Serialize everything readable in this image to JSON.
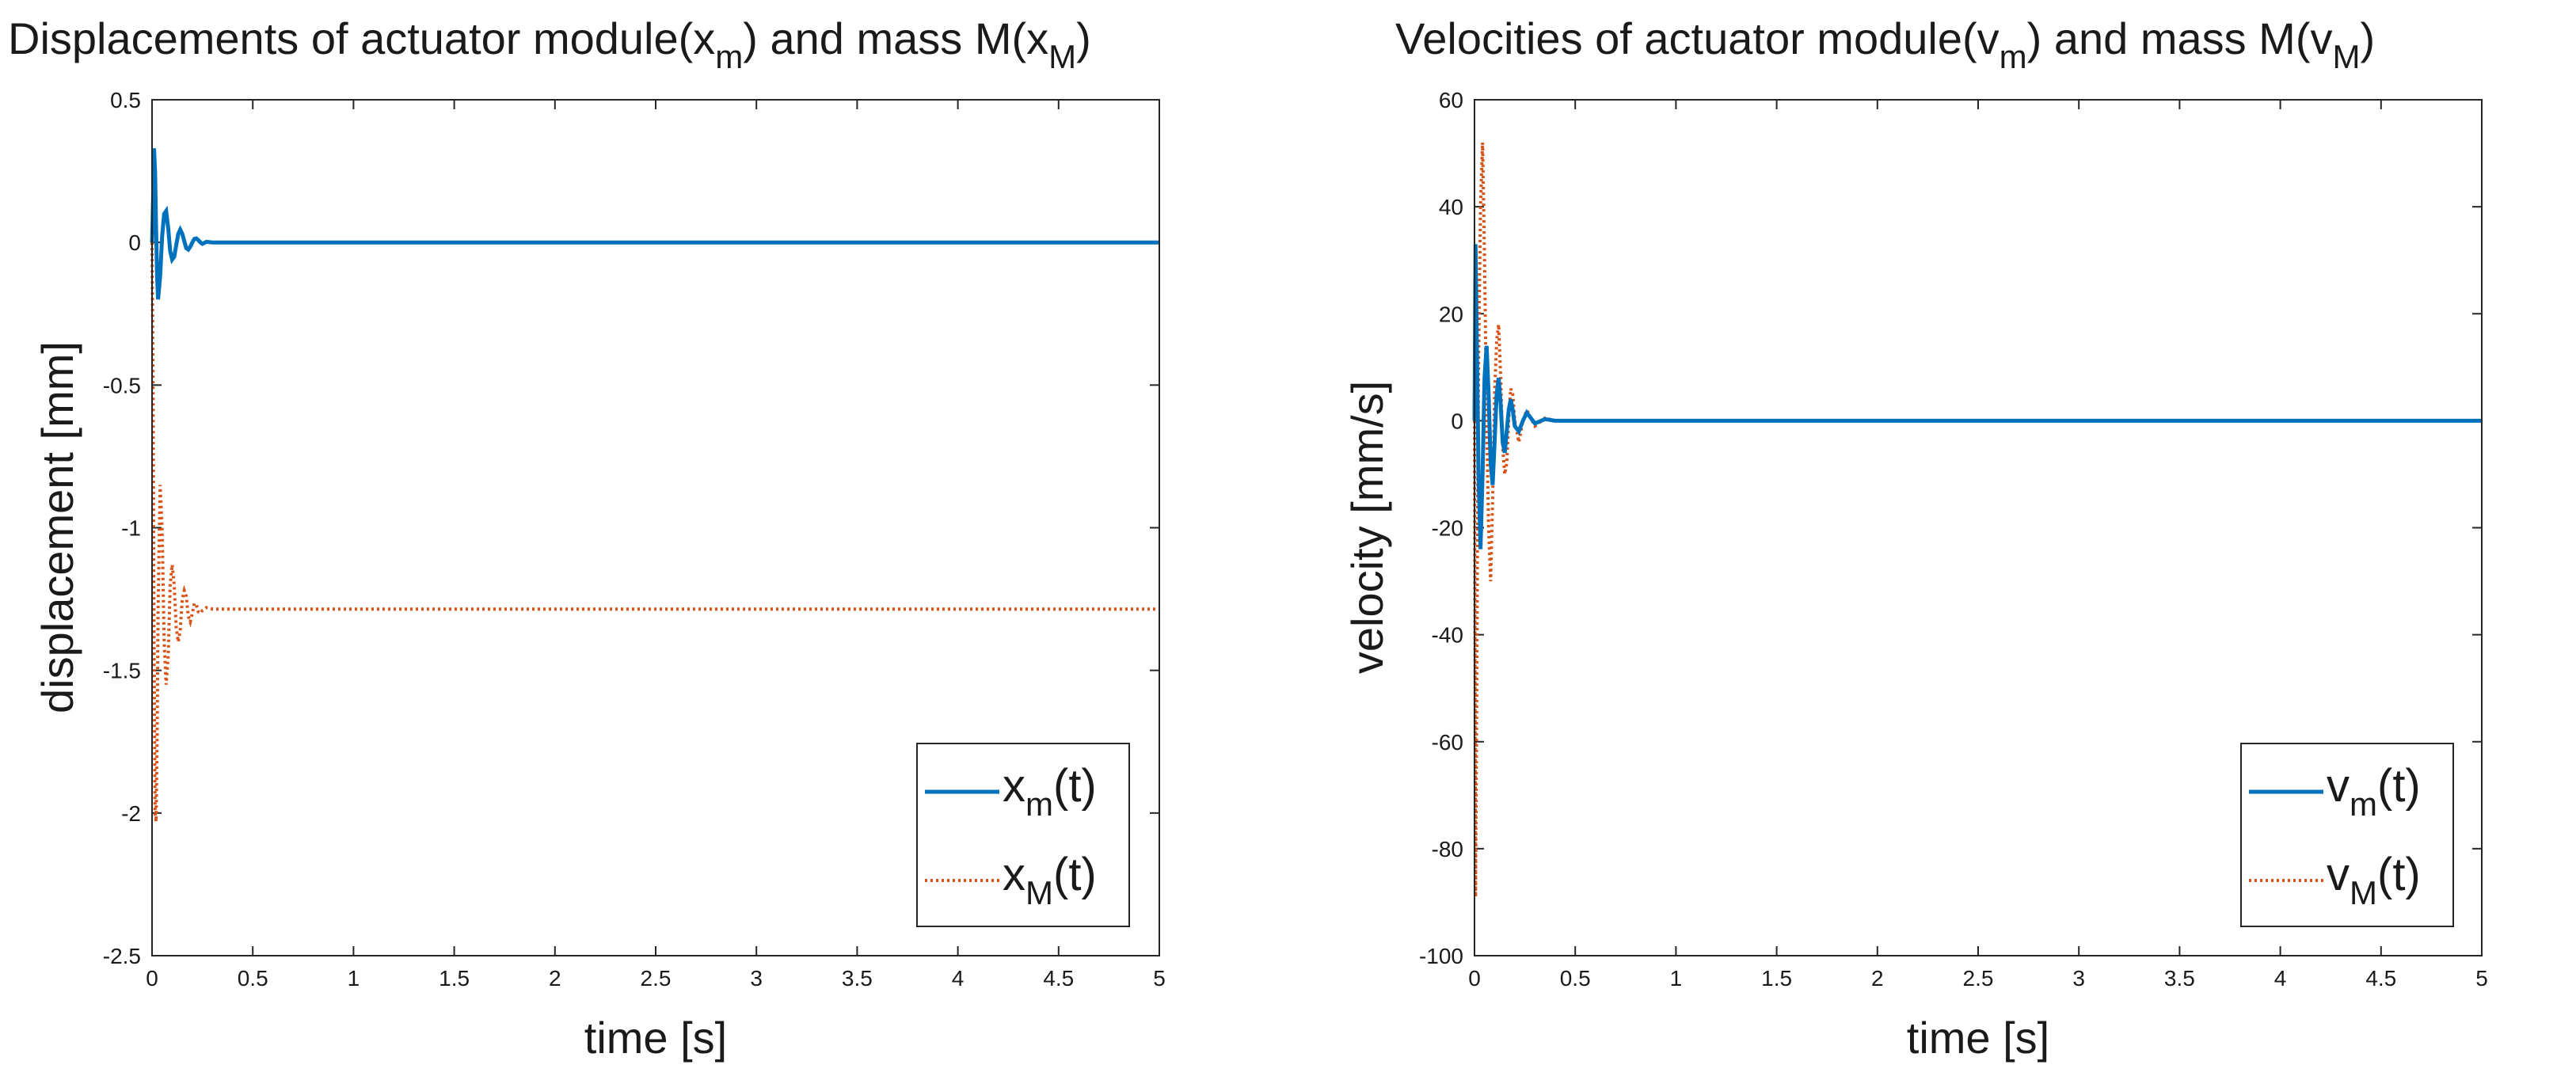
{
  "colors": {
    "module": "#0072BD",
    "mass": "#D95319",
    "axis": "#262626",
    "background": "#ffffff"
  },
  "chart_data": [
    {
      "type": "line",
      "title": {
        "prefix": "Displacements of actuator module(x",
        "sub1": "m",
        "middle": ") and mass M(x",
        "sub2": "M",
        "suffix": ")"
      },
      "xlabel": "time [s]",
      "ylabel": "displacement [mm]",
      "xlim": [
        0,
        5
      ],
      "ylim": [
        -2.5,
        0.5
      ],
      "xticks": [
        0,
        0.5,
        1,
        1.5,
        2,
        2.5,
        3,
        3.5,
        4,
        4.5,
        5
      ],
      "xtick_labels": [
        "0",
        "0.5",
        "1",
        "1.5",
        "2",
        "2.5",
        "3",
        "3.5",
        "4",
        "4.5",
        "5"
      ],
      "yticks": [
        0.5,
        0,
        -0.5,
        -1,
        -1.5,
        -2,
        -2.5
      ],
      "ytick_labels": [
        "0.5",
        "0",
        "-0.5",
        "-1",
        "-1.5",
        "-2",
        "-2.5"
      ],
      "grid": false,
      "legend": {
        "placement": "bottom-right",
        "entries": [
          {
            "base": "x",
            "sub": "m",
            "tail": "(t)"
          },
          {
            "base": "x",
            "sub": "M",
            "tail": "(t)"
          }
        ]
      },
      "series": [
        {
          "name": "x_m(t)",
          "style": "solid",
          "x": [
            0,
            0.005,
            0.01,
            0.015,
            0.02,
            0.025,
            0.03,
            0.04,
            0.05,
            0.06,
            0.07,
            0.08,
            0.09,
            0.1,
            0.11,
            0.12,
            0.13,
            0.14,
            0.15,
            0.16,
            0.17,
            0.18,
            0.19,
            0.2,
            0.21,
            0.22,
            0.23,
            0.24,
            0.25,
            0.27,
            0.3,
            0.35,
            0.5,
            1,
            2,
            3,
            4,
            5
          ],
          "y": [
            0,
            0.15,
            0.33,
            0.25,
            0.05,
            -0.12,
            -0.2,
            -0.12,
            0.02,
            0.1,
            0.11,
            0.05,
            -0.03,
            -0.06,
            -0.05,
            -0.01,
            0.03,
            0.045,
            0.03,
            0.005,
            -0.02,
            -0.025,
            -0.015,
            0.0,
            0.012,
            0.014,
            0.008,
            0.0,
            -0.005,
            0.002,
            0.0,
            0.0,
            0.0,
            0.0,
            0.0,
            0.0,
            0.0,
            0.0
          ]
        },
        {
          "name": "x_M(t)",
          "style": "dotted",
          "x": [
            0,
            0.005,
            0.01,
            0.015,
            0.02,
            0.025,
            0.03,
            0.04,
            0.05,
            0.06,
            0.07,
            0.08,
            0.09,
            0.1,
            0.11,
            0.12,
            0.13,
            0.14,
            0.15,
            0.16,
            0.17,
            0.18,
            0.19,
            0.2,
            0.21,
            0.22,
            0.23,
            0.24,
            0.25,
            0.27,
            0.3,
            0.35,
            0.5,
            1,
            2,
            3,
            4,
            5
          ],
          "y": [
            0,
            -0.5,
            -1.4,
            -2.0,
            -2.03,
            -1.75,
            -1.3,
            -0.85,
            -1.0,
            -1.4,
            -1.55,
            -1.45,
            -1.2,
            -1.13,
            -1.2,
            -1.35,
            -1.4,
            -1.36,
            -1.25,
            -1.22,
            -1.24,
            -1.31,
            -1.33,
            -1.3,
            -1.265,
            -1.27,
            -1.295,
            -1.3,
            -1.29,
            -1.28,
            -1.285,
            -1.285,
            -1.285,
            -1.285,
            -1.285,
            -1.285,
            -1.285,
            -1.285
          ]
        }
      ]
    },
    {
      "type": "line",
      "title": {
        "prefix": "Velocities of actuator module(v",
        "sub1": "m",
        "middle": ") and mass M(v",
        "sub2": "M",
        "suffix": ")"
      },
      "xlabel": "time [s]",
      "ylabel": "velocity [mm/s]",
      "xlim": [
        0,
        5
      ],
      "ylim": [
        -100,
        60
      ],
      "xticks": [
        0,
        0.5,
        1,
        1.5,
        2,
        2.5,
        3,
        3.5,
        4,
        4.5,
        5
      ],
      "xtick_labels": [
        "0",
        "0.5",
        "1",
        "1.5",
        "2",
        "2.5",
        "3",
        "3.5",
        "4",
        "4.5",
        "5"
      ],
      "yticks": [
        60,
        40,
        20,
        0,
        -20,
        -40,
        -60,
        -80,
        -100
      ],
      "ytick_labels": [
        "60",
        "40",
        "20",
        "0",
        "-20",
        "-40",
        "-60",
        "-80",
        "-100"
      ],
      "grid": false,
      "legend": {
        "placement": "bottom-right",
        "entries": [
          {
            "base": "v",
            "sub": "m",
            "tail": "(t)"
          },
          {
            "base": "v",
            "sub": "M",
            "tail": "(t)"
          }
        ]
      },
      "series": [
        {
          "name": "v_m(t)",
          "style": "solid",
          "x": [
            0,
            0.005,
            0.01,
            0.015,
            0.02,
            0.03,
            0.04,
            0.05,
            0.06,
            0.07,
            0.08,
            0.09,
            0.1,
            0.11,
            0.12,
            0.13,
            0.14,
            0.15,
            0.16,
            0.17,
            0.18,
            0.19,
            0.2,
            0.22,
            0.24,
            0.26,
            0.28,
            0.3,
            0.35,
            0.4,
            0.5,
            1,
            2,
            3,
            4,
            5
          ],
          "y": [
            0,
            33,
            20,
            5,
            -10,
            -24,
            -10,
            8,
            14,
            5,
            -8,
            -12,
            -4,
            5,
            8,
            3,
            -4,
            -6,
            -2,
            2,
            4,
            2,
            -1,
            -2,
            0,
            1.5,
            0.5,
            -0.5,
            0.3,
            0,
            0,
            0,
            0,
            0,
            0,
            0
          ]
        },
        {
          "name": "v_M(t)",
          "style": "dotted",
          "x": [
            0,
            0.005,
            0.01,
            0.015,
            0.02,
            0.03,
            0.04,
            0.05,
            0.06,
            0.07,
            0.08,
            0.09,
            0.1,
            0.11,
            0.12,
            0.13,
            0.14,
            0.15,
            0.16,
            0.17,
            0.18,
            0.19,
            0.2,
            0.22,
            0.24,
            0.26,
            0.28,
            0.3,
            0.35,
            0.4,
            0.5,
            1,
            2,
            3,
            4,
            5
          ],
          "y": [
            0,
            -89,
            -60,
            -20,
            10,
            40,
            52,
            30,
            0,
            -20,
            -30,
            -15,
            5,
            15,
            18,
            8,
            -5,
            -10,
            -8,
            0,
            6,
            5,
            0,
            -4,
            0,
            2,
            0.5,
            -1,
            0.5,
            0,
            0,
            0,
            0,
            0,
            0,
            0
          ]
        }
      ]
    }
  ]
}
